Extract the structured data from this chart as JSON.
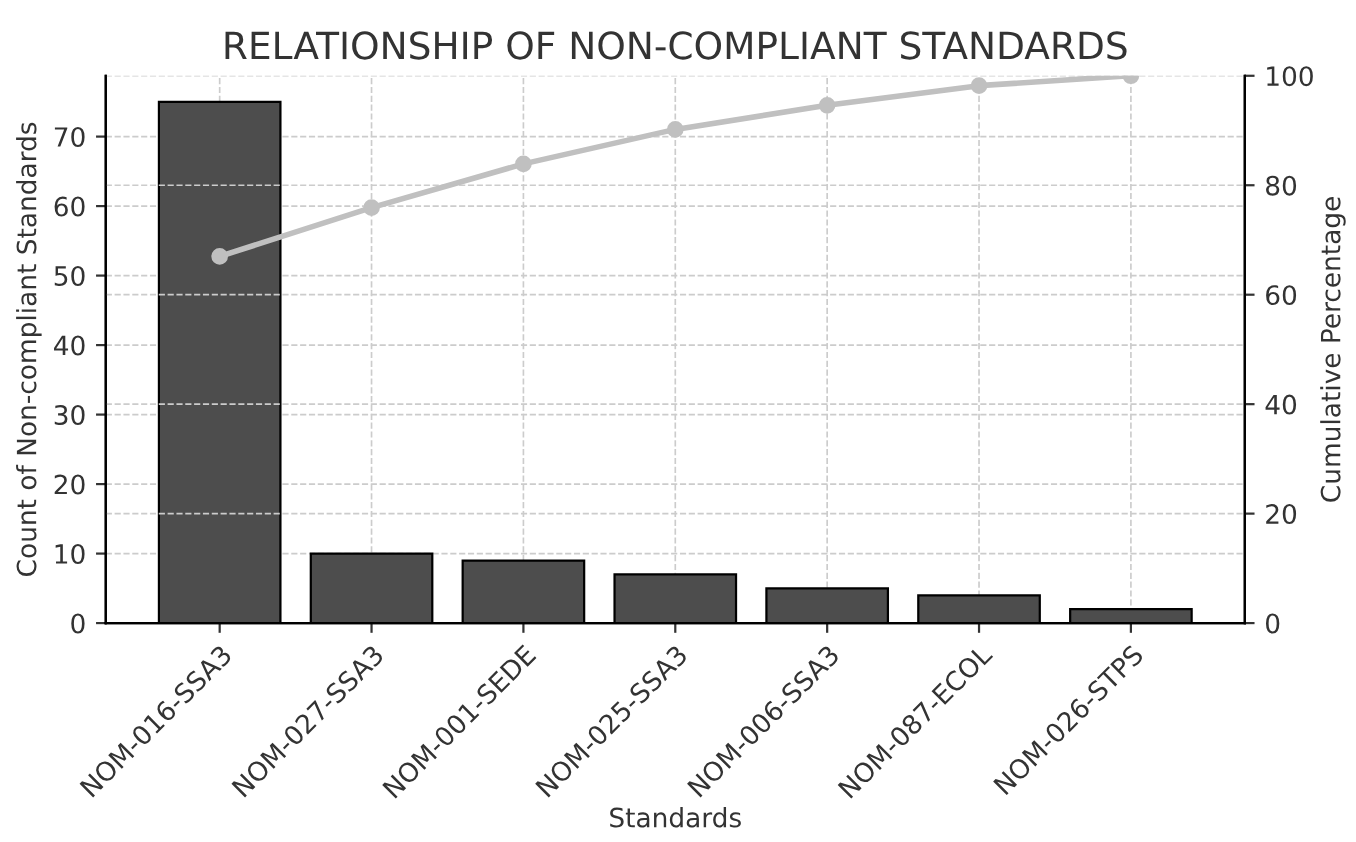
{
  "chart_data": {
    "type": "bar",
    "title": "RELATIONSHIP OF NON-COMPLIANT STANDARDS",
    "xlabel": "Standards",
    "ylabel": "Count of Non-compliant Standards",
    "y2label": "Cumulative Percentage",
    "categories": [
      "NOM-016-SSA3",
      "NOM-027-SSA3",
      "NOM-001-SEDE",
      "NOM-025-SSA3",
      "NOM-006-SSA3",
      "NOM-087-ECOL",
      "NOM-026-STPS"
    ],
    "series": [
      {
        "color": "#4d4d4d",
        "values": [
          75,
          10,
          9,
          7,
          5,
          4,
          2
        ]
      },
      {
        "type": "line",
        "axis": "y2",
        "color": "#c0c0c0",
        "marker": "circle",
        "values": [
          67.0,
          75.9,
          83.9,
          90.2,
          94.6,
          98.2,
          100
        ]
      }
    ],
    "ylim": [
      0,
      78.75
    ],
    "yticks": [
      0,
      10,
      20,
      30,
      40,
      50,
      60,
      70
    ],
    "y2lim": [
      0,
      100
    ],
    "y2ticks": [
      0,
      20,
      40,
      60,
      80,
      100
    ],
    "grid": true,
    "line_style": "solid"
  }
}
